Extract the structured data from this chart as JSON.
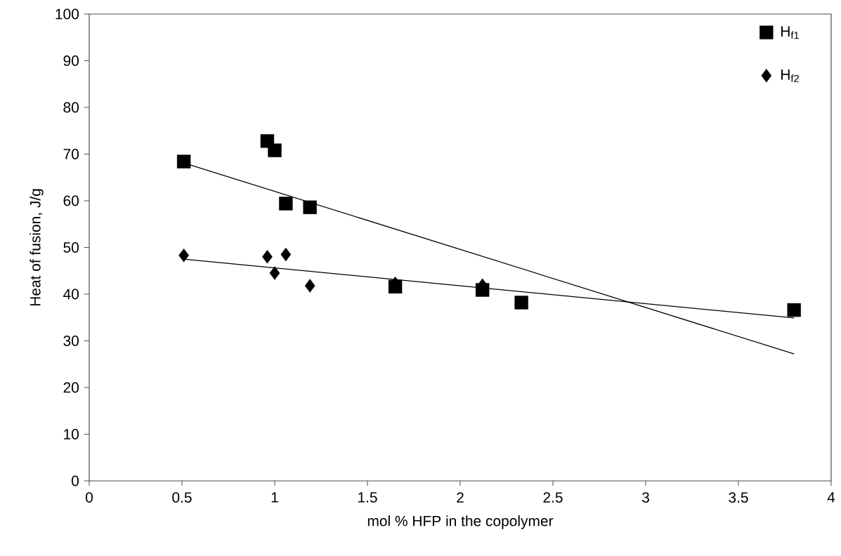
{
  "chart_data": {
    "type": "scatter",
    "xlabel": "mol % HFP in the copolymer",
    "ylabel": "Heat of fusion, J/g",
    "x": [
      0.51,
      0.96,
      1.0,
      1.06,
      1.19,
      1.65,
      2.12,
      2.33,
      3.8
    ],
    "series": [
      {
        "name": "H$_{f1}$",
        "color": "#000000",
        "marker": "square",
        "values": [
          68.4,
          72.8,
          70.8,
          59.4,
          58.6,
          41.6,
          40.9,
          38.2,
          36.6
        ]
      },
      {
        "name": "H$_{f2}$",
        "color": "#000000",
        "marker": "diamond",
        "x": [
          0.51,
          0.96,
          1.0,
          1.06,
          1.19,
          1.65,
          2.12
        ],
        "values": [
          48.3,
          48.0,
          44.5,
          48.5,
          41.8,
          42.3,
          41.9
        ]
      },
      {
        "type": "line",
        "color": "#000000",
        "marker": "none",
        "line_style": "solid",
        "x": [
          0.51,
          3.8
        ],
        "values": [
          68.1,
          27.2
        ]
      },
      {
        "type": "line",
        "color": "#000000",
        "marker": "none",
        "line_style": "solid",
        "x": [
          0.51,
          3.8
        ],
        "values": [
          47.5,
          34.9
        ]
      }
    ],
    "xlim": [
      0,
      4
    ],
    "ylim": [
      0,
      100
    ],
    "xticks": [
      0,
      0.5,
      1,
      1.5,
      2,
      2.5,
      3,
      3.5,
      4
    ],
    "yticks": [
      0,
      10,
      20,
      30,
      40,
      50,
      60,
      70,
      80,
      90,
      100
    ],
    "grid": false,
    "legend": "top right"
  }
}
